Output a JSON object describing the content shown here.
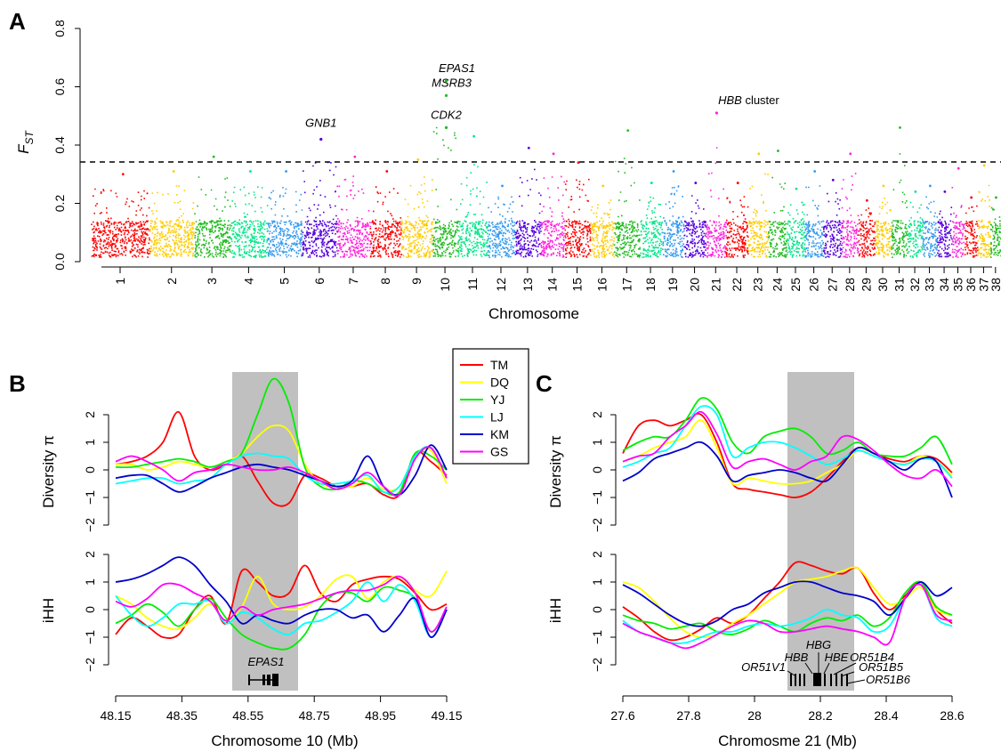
{
  "panel_labels": [
    "A",
    "B",
    "C"
  ],
  "legend": {
    "entries": [
      {
        "name": "TM",
        "color": "#ff0000"
      },
      {
        "name": "DQ",
        "color": "#ffff00"
      },
      {
        "name": "YJ",
        "color": "#00ee00"
      },
      {
        "name": "LJ",
        "color": "#00ffff"
      },
      {
        "name": "KM",
        "color": "#0000cc"
      },
      {
        "name": "GS",
        "color": "#ff00ff"
      }
    ]
  },
  "chart_data": [
    {
      "panel": "A",
      "type": "scatter",
      "ylabel_main": "F",
      "ylabel_sub": "ST",
      "xlabel": "Chromosome",
      "ylim": [
        0.0,
        0.8
      ],
      "yticks": [
        "0.0",
        "0.2",
        "0.4",
        "0.6",
        "0.8"
      ],
      "threshold": 0.335,
      "chromosome_colors": [
        "#ff0000",
        "#ffcc00",
        "#22bb22",
        "#00e68a",
        "#3399ee",
        "#5500dd",
        "#ff22dd"
      ],
      "chromosomes": [
        {
          "label": "1",
          "span": 1.6,
          "peak": 0.3
        },
        {
          "label": "2",
          "span": 1.2,
          "peak": 0.31
        },
        {
          "label": "3",
          "span": 1.0,
          "peak": 0.36
        },
        {
          "label": "4",
          "span": 1.0,
          "peak": 0.31
        },
        {
          "label": "5",
          "span": 0.95,
          "peak": 0.31
        },
        {
          "label": "6",
          "span": 0.95,
          "peak": 0.42
        },
        {
          "label": "7",
          "span": 0.9,
          "peak": 0.36
        },
        {
          "label": "8",
          "span": 0.85,
          "peak": 0.31
        },
        {
          "label": "9",
          "span": 0.85,
          "peak": 0.35
        },
        {
          "label": "10",
          "span": 0.7,
          "peak": 0.62
        },
        {
          "label": "11",
          "span": 0.8,
          "peak": 0.43
        },
        {
          "label": "12",
          "span": 0.75,
          "peak": 0.26
        },
        {
          "label": "13",
          "span": 0.7,
          "peak": 0.39
        },
        {
          "label": "14",
          "span": 0.65,
          "peak": 0.37
        },
        {
          "label": "15",
          "span": 0.7,
          "peak": 0.34
        },
        {
          "label": "16",
          "span": 0.65,
          "peak": 0.26
        },
        {
          "label": "17",
          "span": 0.7,
          "peak": 0.45
        },
        {
          "label": "18",
          "span": 0.6,
          "peak": 0.27
        },
        {
          "label": "19",
          "span": 0.6,
          "peak": 0.31
        },
        {
          "label": "20",
          "span": 0.6,
          "peak": 0.27
        },
        {
          "label": "21",
          "span": 0.55,
          "peak": 0.51
        },
        {
          "label": "22",
          "span": 0.6,
          "peak": 0.27
        },
        {
          "label": "23",
          "span": 0.55,
          "peak": 0.37
        },
        {
          "label": "24",
          "span": 0.5,
          "peak": 0.38
        },
        {
          "label": "25",
          "span": 0.5,
          "peak": 0.25
        },
        {
          "label": "26",
          "span": 0.5,
          "peak": 0.31
        },
        {
          "label": "27",
          "span": 0.5,
          "peak": 0.28
        },
        {
          "label": "28",
          "span": 0.45,
          "peak": 0.37
        },
        {
          "label": "29",
          "span": 0.45,
          "peak": 0.21
        },
        {
          "label": "30",
          "span": 0.45,
          "peak": 0.26
        },
        {
          "label": "31",
          "span": 0.45,
          "peak": 0.46
        },
        {
          "label": "32",
          "span": 0.4,
          "peak": 0.24
        },
        {
          "label": "33",
          "span": 0.4,
          "peak": 0.26
        },
        {
          "label": "34",
          "span": 0.4,
          "peak": 0.24
        },
        {
          "label": "35",
          "span": 0.35,
          "peak": 0.32
        },
        {
          "label": "36",
          "span": 0.35,
          "peak": 0.22
        },
        {
          "label": "37",
          "span": 0.35,
          "peak": 0.33
        },
        {
          "label": "38",
          "span": 0.3,
          "peak": 0.22
        }
      ],
      "annotations": [
        {
          "text": "GNB1",
          "chrom": "6",
          "value": 0.42
        },
        {
          "text": "CDK2",
          "chrom": "10",
          "value": 0.46
        },
        {
          "text": "MSRB3",
          "chrom": "10",
          "value": 0.57
        },
        {
          "text": "EPAS1",
          "chrom": "10",
          "value": 0.62
        },
        {
          "text": "HBB",
          "suffix": " cluster",
          "chrom": "21",
          "value": 0.51
        }
      ]
    },
    {
      "panel": "B",
      "type": "line",
      "xlabel": "Chromosome 10 (Mb)",
      "xticks": [
        "48.15",
        "48.35",
        "48.55",
        "48.75",
        "48.95",
        "49.15"
      ],
      "xlim": [
        48.15,
        49.15
      ],
      "highlight": [
        48.48,
        48.7
      ],
      "gene_labels": [
        "EPAS1"
      ],
      "top": {
        "ylabel": "Diversity π",
        "ylim": [
          -2,
          2
        ],
        "yticks": [
          "−2",
          "−1",
          "0",
          "1",
          "2"
        ],
        "series": [
          {
            "name": "TM",
            "values": [
              0.2,
              0.3,
              0.5,
              1.0,
              2.1,
              0.5,
              0.0,
              0.2,
              0.5,
              -0.4,
              -1.2,
              -1.2,
              -0.2,
              -0.3,
              -0.6,
              -0.6,
              -0.5,
              -0.9,
              -0.9,
              0.6,
              0.3,
              -0.2
            ]
          },
          {
            "name": "DQ",
            "values": [
              0.2,
              0.2,
              0.0,
              0.1,
              0.3,
              0.2,
              0.1,
              0.3,
              0.6,
              1.2,
              1.6,
              1.4,
              0.2,
              -0.5,
              -0.6,
              -0.6,
              -0.3,
              -0.7,
              -0.6,
              0.5,
              0.7,
              -0.5
            ]
          },
          {
            "name": "YJ",
            "values": [
              0.1,
              0.1,
              0.2,
              0.3,
              0.4,
              0.3,
              0.1,
              0.3,
              0.6,
              2.0,
              3.3,
              2.4,
              0.1,
              -0.6,
              -0.7,
              -0.4,
              -0.5,
              -0.8,
              -0.8,
              0.6,
              0.5,
              0.0
            ]
          },
          {
            "name": "LJ",
            "values": [
              -0.5,
              -0.4,
              -0.3,
              -0.3,
              -0.5,
              -0.4,
              -0.3,
              0.2,
              0.5,
              0.6,
              0.5,
              0.4,
              -0.2,
              -0.5,
              -0.5,
              -0.4,
              -0.2,
              -0.8,
              -0.6,
              0.5,
              0.8,
              -0.3
            ]
          },
          {
            "name": "KM",
            "values": [
              -0.3,
              -0.2,
              -0.2,
              -0.5,
              -0.8,
              -0.6,
              -0.3,
              -0.1,
              0.1,
              0.2,
              0.1,
              0.0,
              -0.2,
              -0.4,
              -0.6,
              -0.4,
              0.5,
              -0.6,
              -0.9,
              -0.2,
              0.9,
              0.0
            ]
          },
          {
            "name": "GS",
            "values": [
              0.3,
              0.5,
              0.3,
              0.0,
              -0.4,
              -0.1,
              0.0,
              0.2,
              0.1,
              0.0,
              0.0,
              0.1,
              -0.1,
              -0.4,
              -0.7,
              -0.5,
              -0.1,
              -0.6,
              -0.9,
              0.4,
              0.8,
              -0.3
            ]
          }
        ]
      },
      "bottom": {
        "ylabel": "iHH",
        "ylim": [
          -2,
          2
        ],
        "yticks": [
          "−2",
          "−1",
          "0",
          "1",
          "2"
        ],
        "series": [
          {
            "name": "TM",
            "values": [
              -0.9,
              -0.3,
              -0.6,
              -1.0,
              -0.9,
              0.0,
              0.5,
              -0.5,
              1.4,
              1.0,
              0.5,
              0.6,
              1.6,
              0.6,
              0.3,
              0.9,
              1.1,
              1.2,
              1.1,
              0.6,
              0.0,
              0.2
            ]
          },
          {
            "name": "DQ",
            "values": [
              0.5,
              0.2,
              -0.3,
              -0.6,
              -0.7,
              -0.3,
              0.2,
              -0.4,
              0.1,
              1.2,
              0.2,
              0.0,
              0.1,
              0.5,
              1.1,
              1.2,
              0.4,
              1.0,
              1.2,
              0.7,
              0.5,
              1.4
            ]
          },
          {
            "name": "YJ",
            "values": [
              -0.5,
              -0.2,
              0.2,
              -0.1,
              -0.6,
              0.0,
              0.4,
              -0.3,
              -0.9,
              -1.2,
              -1.4,
              -1.4,
              -0.9,
              0.1,
              0.6,
              0.6,
              0.3,
              0.8,
              0.7,
              0.4,
              -0.8,
              0.0
            ]
          },
          {
            "name": "LJ",
            "values": [
              0.5,
              -0.2,
              -0.6,
              -0.3,
              0.2,
              0.2,
              0.3,
              -0.5,
              -0.1,
              -0.3,
              -0.7,
              -0.9,
              -0.5,
              -0.4,
              -0.1,
              0.3,
              1.0,
              0.3,
              0.9,
              0.3,
              -1.0,
              0.0
            ]
          },
          {
            "name": "KM",
            "values": [
              1.0,
              1.1,
              1.3,
              1.6,
              1.9,
              1.6,
              0.9,
              0.3,
              -0.5,
              -0.2,
              -0.4,
              -0.5,
              -0.2,
              0.0,
              0.0,
              -0.3,
              -0.2,
              -0.8,
              -0.2,
              0.4,
              -1.0,
              0.0
            ]
          },
          {
            "name": "GS",
            "values": [
              0.3,
              0.1,
              0.4,
              0.9,
              0.9,
              0.6,
              0.3,
              -0.4,
              0.1,
              -0.2,
              0.0,
              0.1,
              0.2,
              0.4,
              0.6,
              0.7,
              0.7,
              0.9,
              1.2,
              0.6,
              -0.8,
              0.1
            ]
          }
        ]
      }
    },
    {
      "panel": "C",
      "type": "line",
      "xlabel": "Chromosme 21 (Mb)",
      "xticks": [
        "27.6",
        "27.8",
        "28",
        "28.2",
        "28.4",
        "28.6"
      ],
      "xlim": [
        27.6,
        28.6
      ],
      "highlight": [
        28.1,
        28.3
      ],
      "gene_labels": [
        "HBG",
        "HBB",
        "HBE",
        "OR51B4",
        "OR51V1",
        "OR51B5",
        "OR51B6"
      ],
      "top": {
        "ylabel": "Diversity π",
        "ylim": [
          -2,
          2
        ],
        "yticks": [
          "−2",
          "−1",
          "0",
          "1",
          "2"
        ],
        "series": [
          {
            "name": "TM",
            "values": [
              0.6,
              1.6,
              1.8,
              1.6,
              1.8,
              2.0,
              1.0,
              -0.5,
              -0.7,
              -0.8,
              -0.9,
              -1.0,
              -0.8,
              -0.3,
              0.3,
              0.8,
              0.6,
              0.4,
              0.3,
              0.5,
              0.4,
              -0.1
            ]
          },
          {
            "name": "DQ",
            "values": [
              0.3,
              0.5,
              0.8,
              1.0,
              1.2,
              1.8,
              0.8,
              -0.5,
              -0.3,
              -0.4,
              -0.5,
              -0.5,
              -0.4,
              -0.1,
              0.2,
              0.7,
              0.5,
              0.3,
              0.2,
              0.5,
              0.3,
              -0.2
            ]
          },
          {
            "name": "YJ",
            "values": [
              0.7,
              1.0,
              1.2,
              1.2,
              1.8,
              2.6,
              2.2,
              1.0,
              0.6,
              1.2,
              1.4,
              1.5,
              1.2,
              0.6,
              0.7,
              1.0,
              0.6,
              0.5,
              0.5,
              0.8,
              1.2,
              0.2
            ]
          },
          {
            "name": "LJ",
            "values": [
              0.1,
              0.3,
              0.6,
              0.8,
              1.6,
              2.3,
              2.0,
              0.5,
              0.8,
              1.0,
              1.0,
              0.8,
              0.5,
              0.2,
              0.4,
              0.7,
              0.5,
              0.3,
              0.2,
              0.4,
              0.3,
              -0.3
            ]
          },
          {
            "name": "KM",
            "values": [
              -0.4,
              -0.1,
              0.4,
              0.6,
              0.8,
              1.0,
              0.5,
              -0.4,
              -0.2,
              -0.1,
              0.0,
              -0.1,
              -0.3,
              -0.4,
              0.2,
              0.8,
              0.6,
              0.3,
              0.0,
              0.4,
              0.3,
              -1.0
            ]
          },
          {
            "name": "GS",
            "values": [
              0.3,
              0.5,
              0.6,
              1.2,
              1.6,
              2.1,
              1.3,
              0.1,
              0.3,
              0.4,
              0.2,
              0.0,
              0.3,
              0.5,
              1.2,
              1.1,
              0.7,
              0.2,
              -0.2,
              -0.3,
              0.0,
              -0.6
            ]
          }
        ]
      },
      "bottom": {
        "ylabel": "iHH",
        "ylim": [
          -2,
          2
        ],
        "yticks": [
          "−2",
          "−1",
          "0",
          "1",
          "2"
        ],
        "series": [
          {
            "name": "TM",
            "values": [
              0.1,
              -0.3,
              -0.8,
              -1.1,
              -1.0,
              -0.7,
              -0.3,
              -0.5,
              -0.2,
              0.4,
              1.0,
              1.7,
              1.6,
              1.4,
              1.3,
              1.5,
              0.6,
              0.0,
              0.5,
              1.0,
              0.0,
              -0.5
            ]
          },
          {
            "name": "DQ",
            "values": [
              1.0,
              0.8,
              0.3,
              -0.3,
              -0.8,
              -1.0,
              -0.9,
              -0.5,
              -0.2,
              0.2,
              0.6,
              1.0,
              1.1,
              1.2,
              1.4,
              1.5,
              0.8,
              0.2,
              0.4,
              0.8,
              0.0,
              -0.2
            ]
          },
          {
            "name": "YJ",
            "values": [
              -0.2,
              -0.4,
              -0.5,
              -0.7,
              -0.6,
              -0.5,
              -0.8,
              -0.9,
              -0.7,
              -0.4,
              -0.6,
              -0.8,
              -0.5,
              -0.3,
              -0.4,
              -0.2,
              -0.6,
              -0.3,
              0.6,
              1.0,
              0.1,
              -0.2
            ]
          },
          {
            "name": "LJ",
            "values": [
              -0.4,
              -0.8,
              -1.0,
              -1.2,
              -1.2,
              -1.0,
              -0.8,
              -0.8,
              -0.6,
              -0.5,
              -0.6,
              -0.5,
              -0.3,
              0.0,
              -0.2,
              -0.3,
              -0.8,
              -0.6,
              0.4,
              0.9,
              -0.3,
              -0.6
            ]
          },
          {
            "name": "KM",
            "values": [
              0.9,
              0.6,
              0.2,
              -0.2,
              -0.5,
              -0.6,
              -0.4,
              0.0,
              0.2,
              0.6,
              0.8,
              1.0,
              1.0,
              0.8,
              0.6,
              0.5,
              0.3,
              -0.2,
              0.4,
              1.0,
              0.5,
              0.8
            ]
          },
          {
            "name": "GS",
            "values": [
              -0.5,
              -0.8,
              -1.0,
              -1.2,
              -1.4,
              -1.2,
              -0.9,
              -0.6,
              -0.4,
              -0.5,
              -0.8,
              -0.8,
              -0.7,
              -0.6,
              -0.7,
              -0.8,
              -1.0,
              -1.2,
              0.4,
              0.9,
              -0.2,
              -0.4
            ]
          }
        ]
      }
    }
  ]
}
